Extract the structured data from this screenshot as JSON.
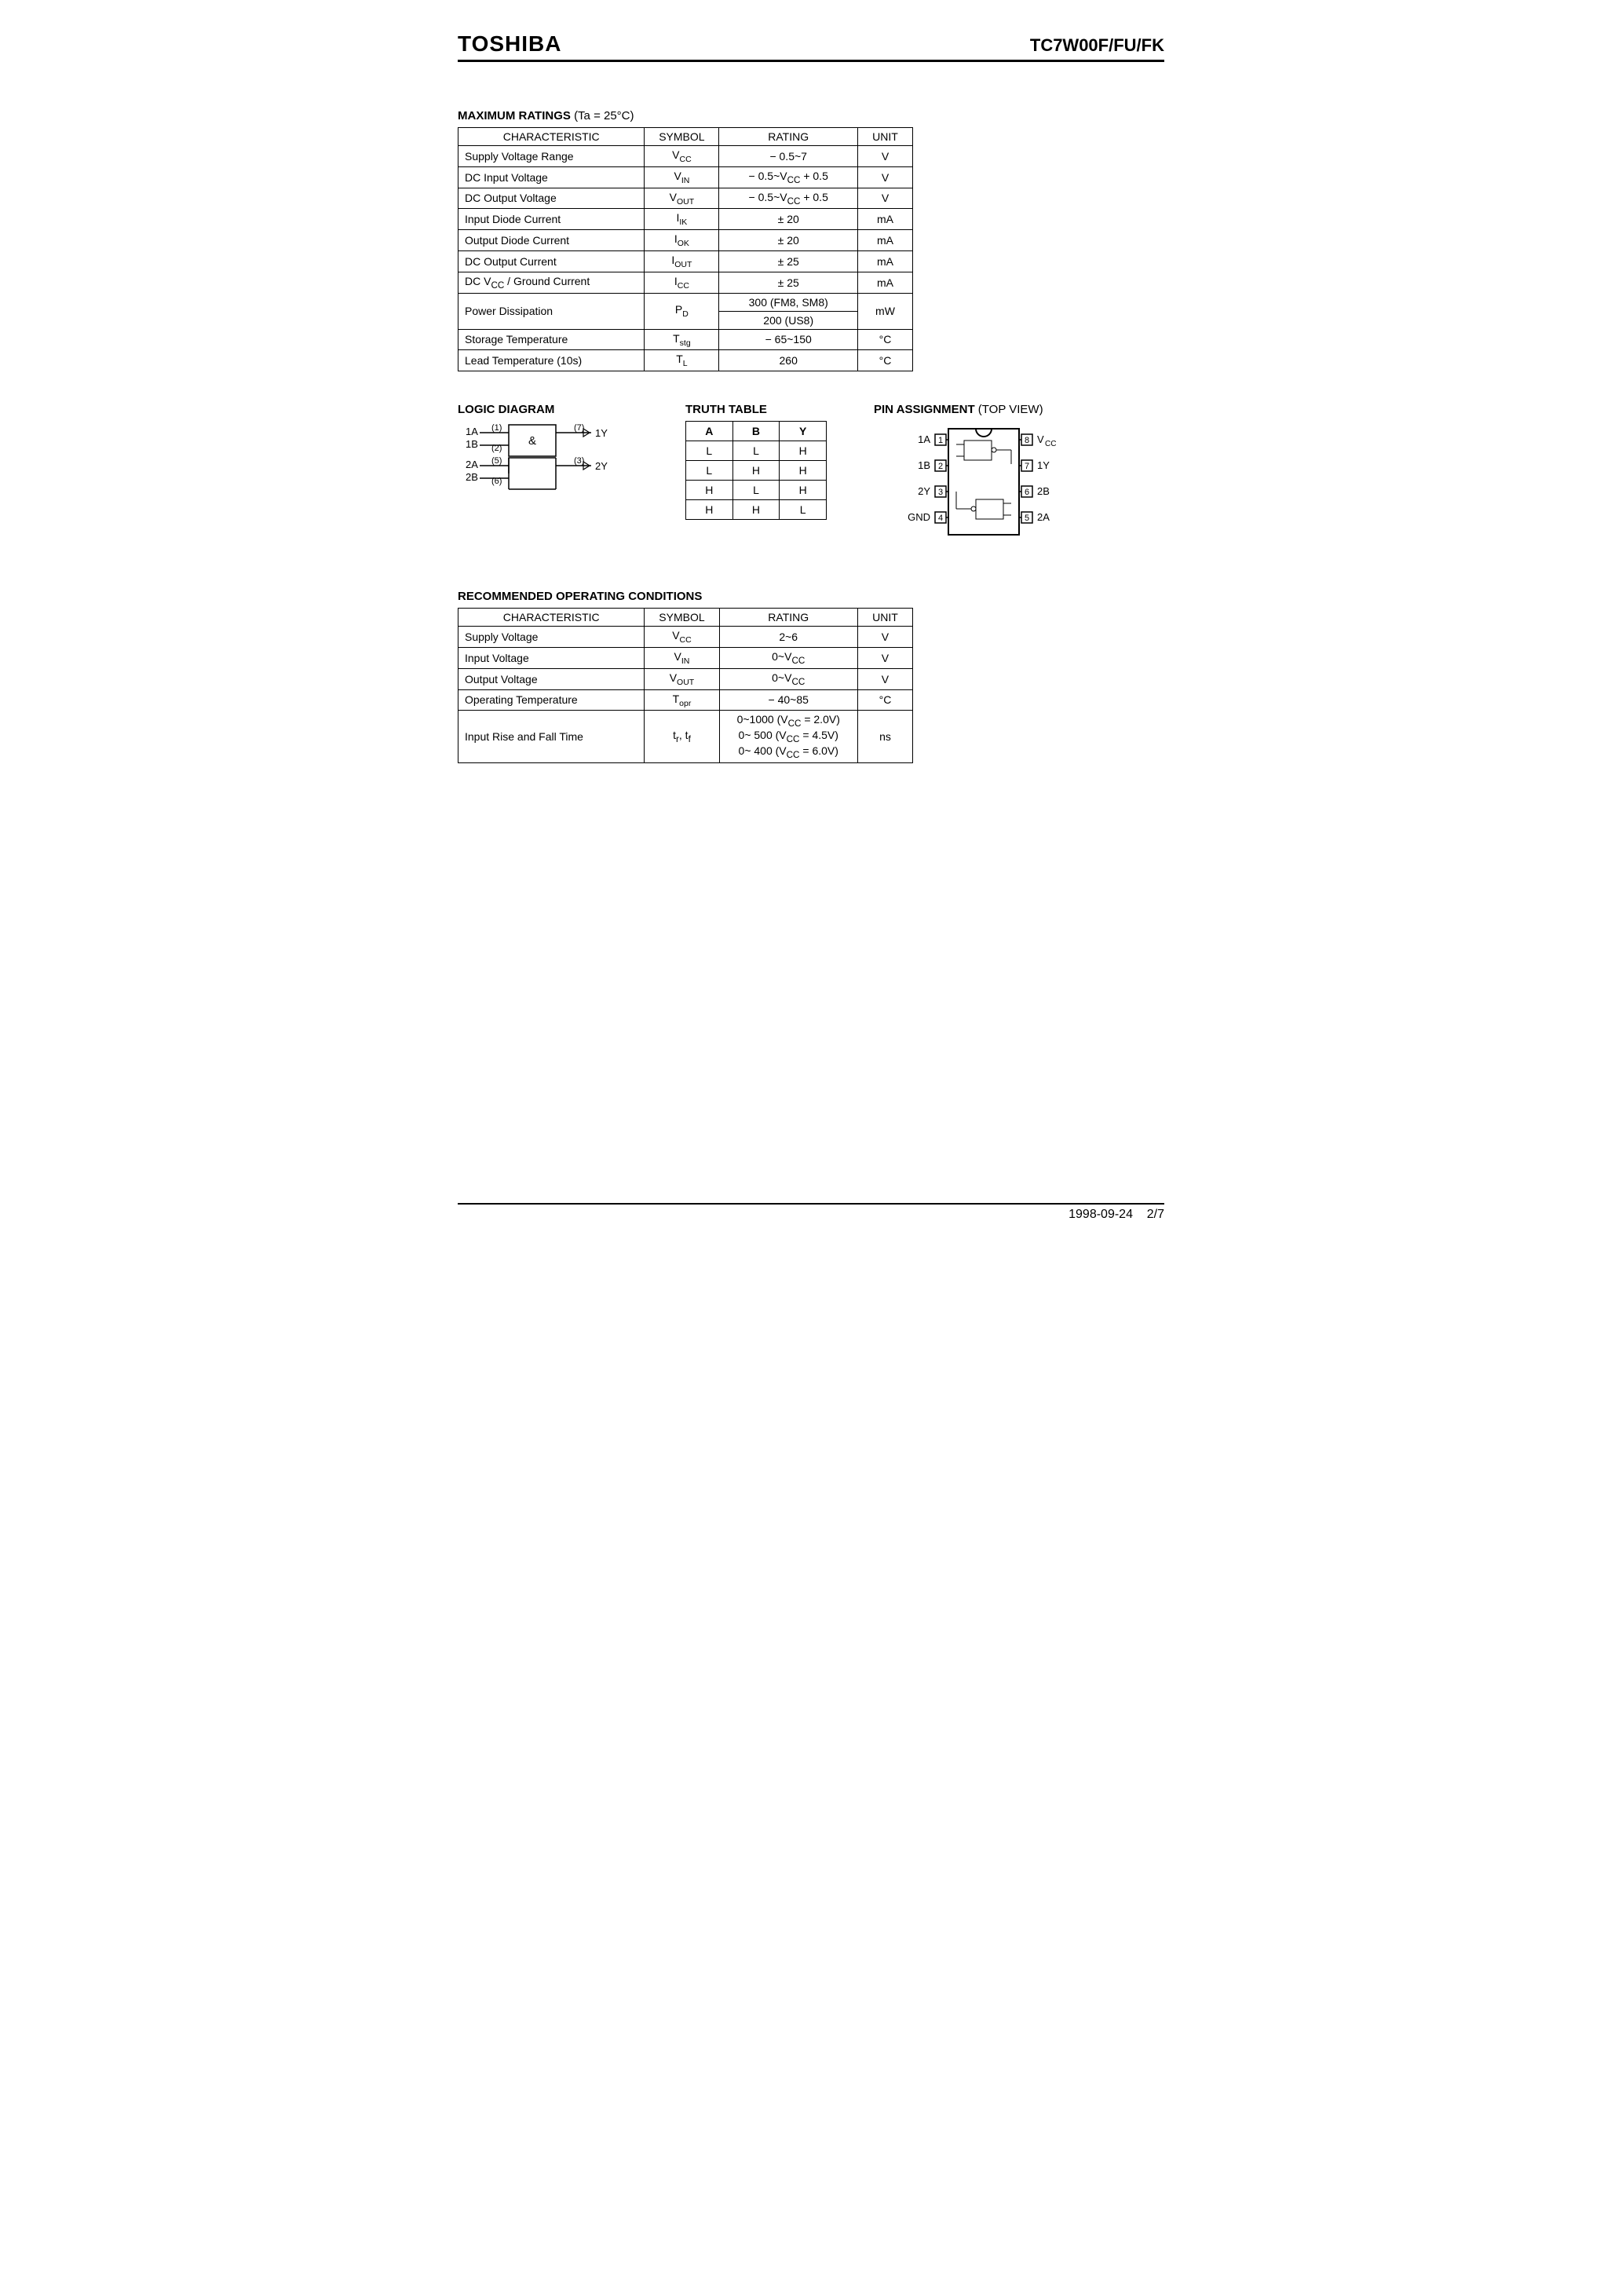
{
  "header": {
    "brand": "TOSHIBA",
    "part": "TC7W00F/FU/FK"
  },
  "maxRatings": {
    "title": "MAXIMUM RATINGS",
    "condition": "(Ta = 25°C)",
    "headers": {
      "char": "CHARACTERISTIC",
      "symbol": "SYMBOL",
      "rating": "RATING",
      "unit": "UNIT"
    },
    "rows": [
      {
        "char": "Supply Voltage Range",
        "sym_main": "V",
        "sym_sub": "CC",
        "rating": "− 0.5~7",
        "unit": "V"
      },
      {
        "char": "DC Input Voltage",
        "sym_main": "V",
        "sym_sub": "IN",
        "rating": "− 0.5~V<sub>CC</sub> + 0.5",
        "unit": "V"
      },
      {
        "char": "DC Output Voltage",
        "sym_main": "V",
        "sym_sub": "OUT",
        "rating": "− 0.5~V<sub>CC</sub> + 0.5",
        "unit": "V"
      },
      {
        "char": "Input Diode Current",
        "sym_main": "I",
        "sym_sub": "IK",
        "rating": "± 20",
        "unit": "mA"
      },
      {
        "char": "Output Diode Current",
        "sym_main": "I",
        "sym_sub": "OK",
        "rating": "± 20",
        "unit": "mA"
      },
      {
        "char": "DC Output Current",
        "sym_main": "I",
        "sym_sub": "OUT",
        "rating": "± 25",
        "unit": "mA"
      },
      {
        "char": "DC V<sub>CC</sub> / Ground Current",
        "sym_main": "I",
        "sym_sub": "CC",
        "rating": "± 25",
        "unit": "mA"
      },
      {
        "char": "Power Dissipation",
        "sym_main": "P",
        "sym_sub": "D",
        "rating": "300 (FM8, SM8)<br>200 (US8)",
        "unit": "mW",
        "rowspan": true
      },
      {
        "char": "Storage Temperature",
        "sym_main": "T",
        "sym_sub": "stg",
        "rating": "− 65~150",
        "unit": "°C"
      },
      {
        "char": "Lead Temperature (10s)",
        "sym_main": "T",
        "sym_sub": "L",
        "rating": "260",
        "unit": "°C"
      }
    ]
  },
  "logicDiagram": {
    "title": "LOGIC DIAGRAM",
    "labels": {
      "1A": "1A",
      "1B": "1B",
      "2A": "2A",
      "2B": "2B",
      "1Y": "1Y",
      "2Y": "2Y",
      "gate": "&"
    },
    "pins": {
      "1": "(1)",
      "2": "(2)",
      "5": "(5)",
      "6": "(6)",
      "7": "(7)",
      "3": "(3)"
    }
  },
  "truthTable": {
    "title": "TRUTH TABLE",
    "headers": {
      "A": "A",
      "B": "B",
      "Y": "Y"
    },
    "rows": [
      [
        "L",
        "L",
        "H"
      ],
      [
        "L",
        "H",
        "H"
      ],
      [
        "H",
        "L",
        "H"
      ],
      [
        "H",
        "H",
        "L"
      ]
    ]
  },
  "pinAssignment": {
    "title": "PIN ASSIGNMENT",
    "subtitle": "(TOP VIEW)",
    "leftPins": [
      {
        "num": "1",
        "label": "1A"
      },
      {
        "num": "2",
        "label": "1B"
      },
      {
        "num": "3",
        "label": "2Y"
      },
      {
        "num": "4",
        "label": "GND"
      }
    ],
    "rightPins": [
      {
        "num": "8",
        "label": "VCC"
      },
      {
        "num": "7",
        "label": "1Y"
      },
      {
        "num": "6",
        "label": "2B"
      },
      {
        "num": "5",
        "label": "2A"
      }
    ]
  },
  "recommended": {
    "title": "RECOMMENDED OPERATING CONDITIONS",
    "headers": {
      "char": "CHARACTERISTIC",
      "symbol": "SYMBOL",
      "rating": "RATING",
      "unit": "UNIT"
    },
    "rows": [
      {
        "char": "Supply Voltage",
        "sym_main": "V",
        "sym_sub": "CC",
        "rating": "2~6",
        "unit": "V"
      },
      {
        "char": "Input Voltage",
        "sym_main": "V",
        "sym_sub": "IN",
        "rating": "0~V<sub>CC</sub>",
        "unit": "V"
      },
      {
        "char": "Output Voltage",
        "sym_main": "V",
        "sym_sub": "OUT",
        "rating": "0~V<sub>CC</sub>",
        "unit": "V"
      },
      {
        "char": "Operating Temperature",
        "sym_main": "T",
        "sym_sub": "opr",
        "rating": "− 40~85",
        "unit": "°C"
      },
      {
        "char": "Input Rise and Fall Time",
        "sym_main": "t<sub>r</sub>, t<sub>f</sub>",
        "sym_sub": "",
        "rating": "0~1000  (V<sub>CC</sub> = 2.0V)<br>0~  500  (V<sub>CC</sub> = 4.5V)<br>0~  400  (V<sub>CC</sub> = 6.0V)",
        "unit": "ns"
      }
    ]
  },
  "footer": {
    "date": "1998-09-24",
    "page": "2/7"
  }
}
